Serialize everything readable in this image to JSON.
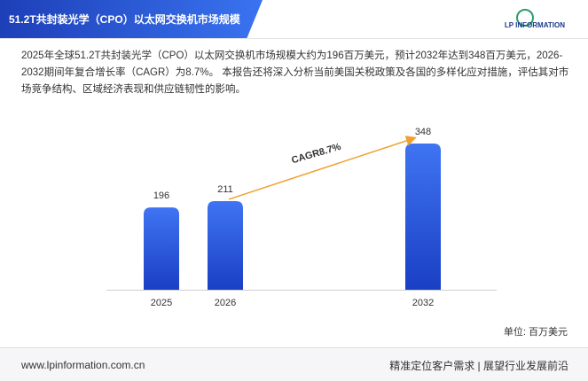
{
  "header": {
    "title": "51.2T共封装光学（CPO）以太网交换机市场规模",
    "logo": "LP INFORMATION"
  },
  "description": "2025年全球51.2T共封装光学（CPO）以太网交换机市场规模大约为196百万美元，预计2032年达到348百万美元，2026-2032期间年复合增长率（CAGR）为8.7%。 本报告还将深入分析当前美国关税政策及各国的多样化应对措施，评估其对市场竞争结构、区域经济表现和供应链韧性的影响。",
  "chart_data": {
    "type": "bar",
    "categories": [
      "2025",
      "2026",
      "2032"
    ],
    "values": [
      196,
      211,
      348
    ],
    "color": "#2f5fe0",
    "annotation": "CAGR8.7%",
    "unit": "单位: 百万美元"
  },
  "footer": {
    "url": "www.lpinformation.com.cn",
    "slogan": "精准定位客户需求 | 展望行业发展前沿"
  }
}
